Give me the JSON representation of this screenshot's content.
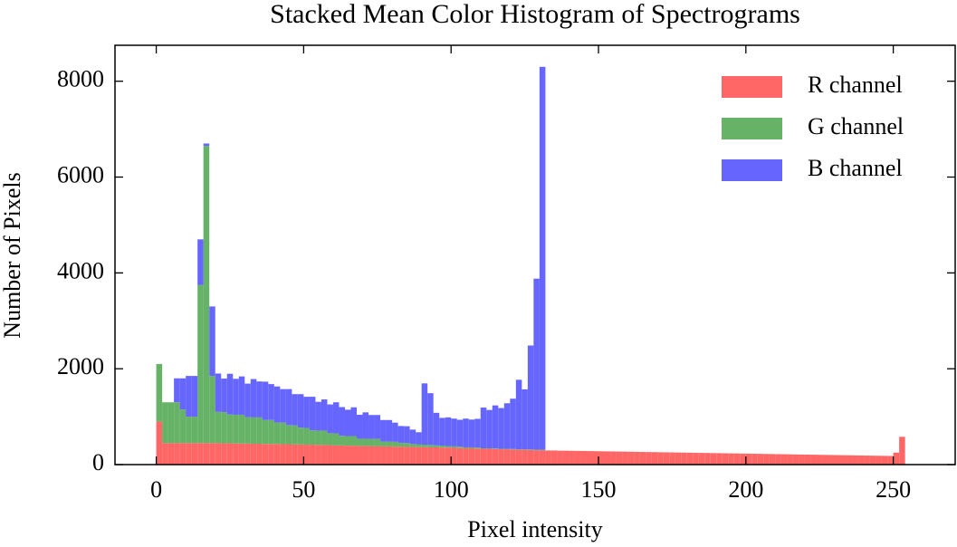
{
  "chart_data": {
    "type": "histogram",
    "stacked": true,
    "title": "Stacked Mean Color Histogram of Spectrograms",
    "xlabel": "Pixel intensity",
    "ylabel": "Number of Pixels",
    "bins": [
      0,
      2,
      4,
      6,
      8,
      10,
      12,
      14,
      16,
      18,
      20,
      22,
      24,
      26,
      28,
      30,
      32,
      34,
      36,
      38,
      40,
      42,
      44,
      46,
      48,
      50,
      52,
      54,
      56,
      58,
      60,
      62,
      64,
      66,
      68,
      70,
      72,
      74,
      76,
      78,
      80,
      82,
      84,
      86,
      88,
      90,
      92,
      94,
      96,
      98,
      100,
      102,
      104,
      106,
      108,
      110,
      112,
      114,
      116,
      118,
      120,
      122,
      124,
      126,
      128,
      130,
      132,
      134,
      136,
      138,
      140,
      142,
      144,
      146,
      148,
      150,
      152,
      154,
      156,
      158,
      160,
      162,
      164,
      166,
      168,
      170,
      172,
      174,
      176,
      178,
      180,
      182,
      184,
      186,
      188,
      190,
      192,
      194,
      196,
      198,
      200,
      202,
      204,
      206,
      208,
      210,
      212,
      214,
      216,
      218,
      220,
      222,
      224,
      226,
      228,
      230,
      232,
      234,
      236,
      238,
      240,
      242,
      244,
      246,
      248,
      250,
      252,
      254,
      256
    ],
    "series": [
      {
        "name": "R channel",
        "color": "#ff6666",
        "values": [
          900,
          450,
          450,
          450,
          450,
          450,
          450,
          450,
          450,
          450,
          450,
          445,
          445,
          440,
          440,
          440,
          435,
          435,
          430,
          430,
          430,
          425,
          425,
          420,
          420,
          415,
          415,
          410,
          410,
          405,
          400,
          400,
          395,
          395,
          390,
          390,
          385,
          385,
          380,
          380,
          375,
          375,
          370,
          370,
          365,
          365,
          360,
          360,
          355,
          355,
          350,
          345,
          340,
          340,
          335,
          330,
          330,
          325,
          320,
          320,
          315,
          310,
          310,
          305,
          300,
          300,
          295,
          295,
          290,
          290,
          288,
          286,
          284,
          282,
          280,
          278,
          276,
          274,
          272,
          270,
          268,
          266,
          264,
          262,
          260,
          258,
          256,
          254,
          252,
          250,
          248,
          246,
          244,
          242,
          240,
          238,
          236,
          234,
          232,
          230,
          228,
          226,
          224,
          222,
          220,
          218,
          216,
          214,
          212,
          210,
          208,
          206,
          204,
          202,
          200,
          198,
          196,
          194,
          192,
          190,
          188,
          186,
          184,
          182,
          180,
          250,
          580,
          0
        ]
      },
      {
        "name": "G channel",
        "color": "#66b266",
        "values": [
          1200,
          850,
          850,
          850,
          700,
          550,
          550,
          3300,
          6200,
          1400,
          650,
          650,
          600,
          600,
          600,
          550,
          550,
          550,
          500,
          500,
          450,
          450,
          400,
          400,
          350,
          350,
          300,
          300,
          300,
          250,
          250,
          200,
          200,
          200,
          150,
          150,
          150,
          150,
          100,
          100,
          100,
          80,
          80,
          60,
          60,
          50,
          50,
          40,
          40,
          30,
          30,
          30,
          20,
          20,
          20,
          10,
          10,
          10,
          10,
          10,
          10,
          10,
          10,
          10,
          10,
          10,
          0,
          0,
          0,
          0,
          0,
          0,
          0,
          0,
          0,
          0,
          0,
          0,
          0,
          0,
          0,
          0,
          0,
          0,
          0,
          0,
          0,
          0,
          0,
          0,
          0,
          0,
          0,
          0,
          0,
          0,
          0,
          0,
          0,
          0,
          0,
          0,
          0,
          0,
          0,
          0,
          0,
          0,
          0,
          0,
          0,
          0,
          0,
          0,
          0,
          0,
          0,
          0,
          0,
          0,
          0,
          0,
          0,
          0,
          0,
          0,
          0,
          0
        ]
      },
      {
        "name": "B channel",
        "color": "#6666ff",
        "values": [
          0,
          0,
          0,
          500,
          650,
          850,
          850,
          950,
          50,
          1450,
          800,
          700,
          850,
          750,
          800,
          700,
          800,
          750,
          800,
          750,
          750,
          700,
          750,
          650,
          700,
          650,
          700,
          600,
          650,
          600,
          650,
          600,
          550,
          600,
          500,
          550,
          500,
          500,
          450,
          450,
          400,
          350,
          350,
          300,
          250,
          1280,
          1080,
          680,
          580,
          600,
          580,
          560,
          600,
          580,
          600,
          850,
          800,
          900,
          850,
          950,
          1050,
          1450,
          1250,
          2170,
          3570,
          7990,
          0,
          0,
          0,
          0,
          0,
          0,
          0,
          0,
          0,
          0,
          0,
          0,
          0,
          0,
          0,
          0,
          0,
          0,
          0,
          0,
          0,
          0,
          0,
          0,
          0,
          0,
          0,
          0,
          0,
          0,
          0,
          0,
          0,
          0,
          0,
          0,
          0,
          0,
          0,
          0,
          0,
          0,
          0,
          0,
          0,
          0,
          0,
          0,
          0,
          0,
          0,
          0,
          0,
          0,
          0,
          0,
          0,
          0,
          0,
          0,
          0,
          0
        ]
      }
    ],
    "xlim": [
      -14,
      271
    ],
    "xticks": [
      0,
      50,
      100,
      150,
      200,
      250
    ],
    "ylim": [
      0,
      8750
    ],
    "yticks": [
      0,
      2000,
      4000,
      6000,
      8000
    ],
    "legend": "upper right"
  }
}
